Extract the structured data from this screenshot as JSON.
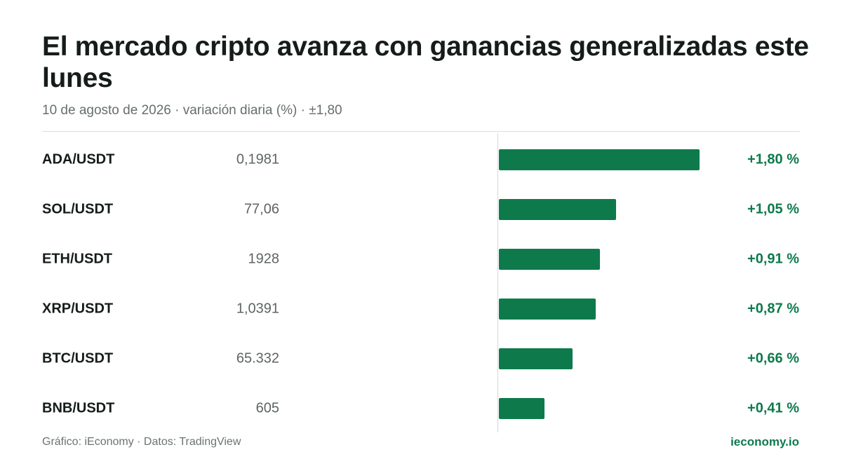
{
  "header": {
    "title": "El mercado cripto avanza con ganancias generalizadas este lunes",
    "subtitle": "10 de agosto de 2026 · variación diaria (%) · ±1,80"
  },
  "colors": {
    "positive": "#0e7a4c",
    "accent_text": "#0e7a4c"
  },
  "chart_data": {
    "type": "bar",
    "orientation": "horizontal",
    "categories": [
      "ADA/USDT",
      "SOL/USDT",
      "ETH/USDT",
      "XRP/USDT",
      "BTC/USDT",
      "BNB/USDT"
    ],
    "prices": [
      "0,1981",
      "77,06",
      "1928",
      "1,0391",
      "65.332",
      "605"
    ],
    "values": [
      1.8,
      1.05,
      0.91,
      0.87,
      0.66,
      0.41
    ],
    "value_labels": [
      "+1,80 %",
      "+1,05 %",
      "+0,91 %",
      "+0,87 %",
      "+0,66 %",
      "+0,41 %"
    ],
    "xlim": [
      -1.8,
      1.8
    ],
    "grid": false,
    "legend": "none"
  },
  "footer": {
    "source": "Gráfico: iEconomy · Datos: TradingView",
    "brand": "ieconomy.io"
  }
}
